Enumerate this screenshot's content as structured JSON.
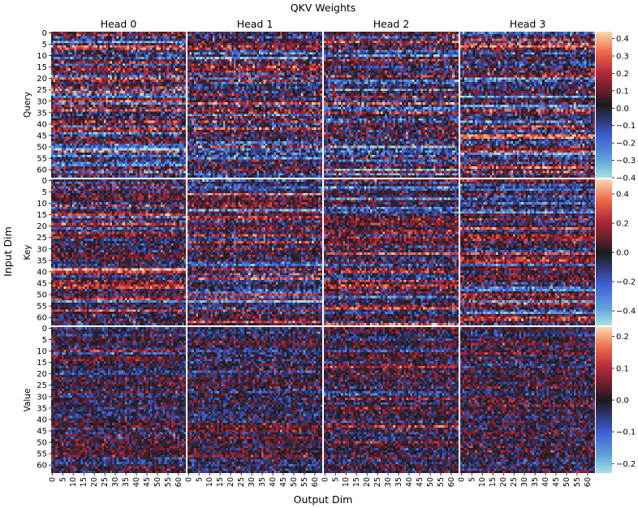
{
  "chart_data": {
    "type": "heatmap",
    "title": "QKV Weights",
    "xlabel": "Output Dim",
    "ylabel": "Input Dim",
    "colormap": "icefire",
    "heads": [
      "Head 0",
      "Head 1",
      "Head 2",
      "Head 3"
    ],
    "rows": [
      {
        "name": "Query",
        "vmin": -0.4,
        "vmax": 0.44,
        "colorbar_ticks": [
          -0.4,
          -0.3,
          -0.2,
          -0.1,
          0.0,
          0.1,
          0.2,
          0.3,
          0.4
        ],
        "colorbar_tick_labels": [
          "−0.4",
          "−0.3",
          "−0.2",
          "−0.1",
          "0.0",
          "0.1",
          "0.2",
          "0.3",
          "0.4"
        ]
      },
      {
        "name": "Key",
        "vmin": -0.5,
        "vmax": 0.5,
        "colorbar_ticks": [
          -0.4,
          -0.2,
          0.0,
          0.2,
          0.4
        ],
        "colorbar_tick_labels": [
          "−0.4",
          "−0.2",
          "0.0",
          "0.2",
          "0.4"
        ]
      },
      {
        "name": "Value",
        "vmin": -0.23,
        "vmax": 0.23,
        "colorbar_ticks": [
          -0.2,
          -0.1,
          0.0,
          0.1,
          0.2
        ],
        "colorbar_tick_labels": [
          "−0.2",
          "−0.1",
          "0.0",
          "0.1",
          "0.2"
        ]
      }
    ],
    "matrix_shape": [
      64,
      64
    ],
    "x_tick_labels": [
      "0",
      "5",
      "10",
      "15",
      "20",
      "25",
      "30",
      "35",
      "40",
      "45",
      "50",
      "55",
      "60"
    ],
    "y_tick_labels": [
      "0",
      "5",
      "10",
      "15",
      "20",
      "25",
      "30",
      "35",
      "40",
      "45",
      "50",
      "55",
      "60"
    ],
    "x_ticks": [
      0,
      5,
      10,
      15,
      20,
      25,
      30,
      35,
      40,
      45,
      50,
      55,
      60
    ],
    "y_ticks": [
      0,
      5,
      10,
      15,
      20,
      25,
      30,
      35,
      40,
      45,
      50,
      55,
      60
    ]
  }
}
